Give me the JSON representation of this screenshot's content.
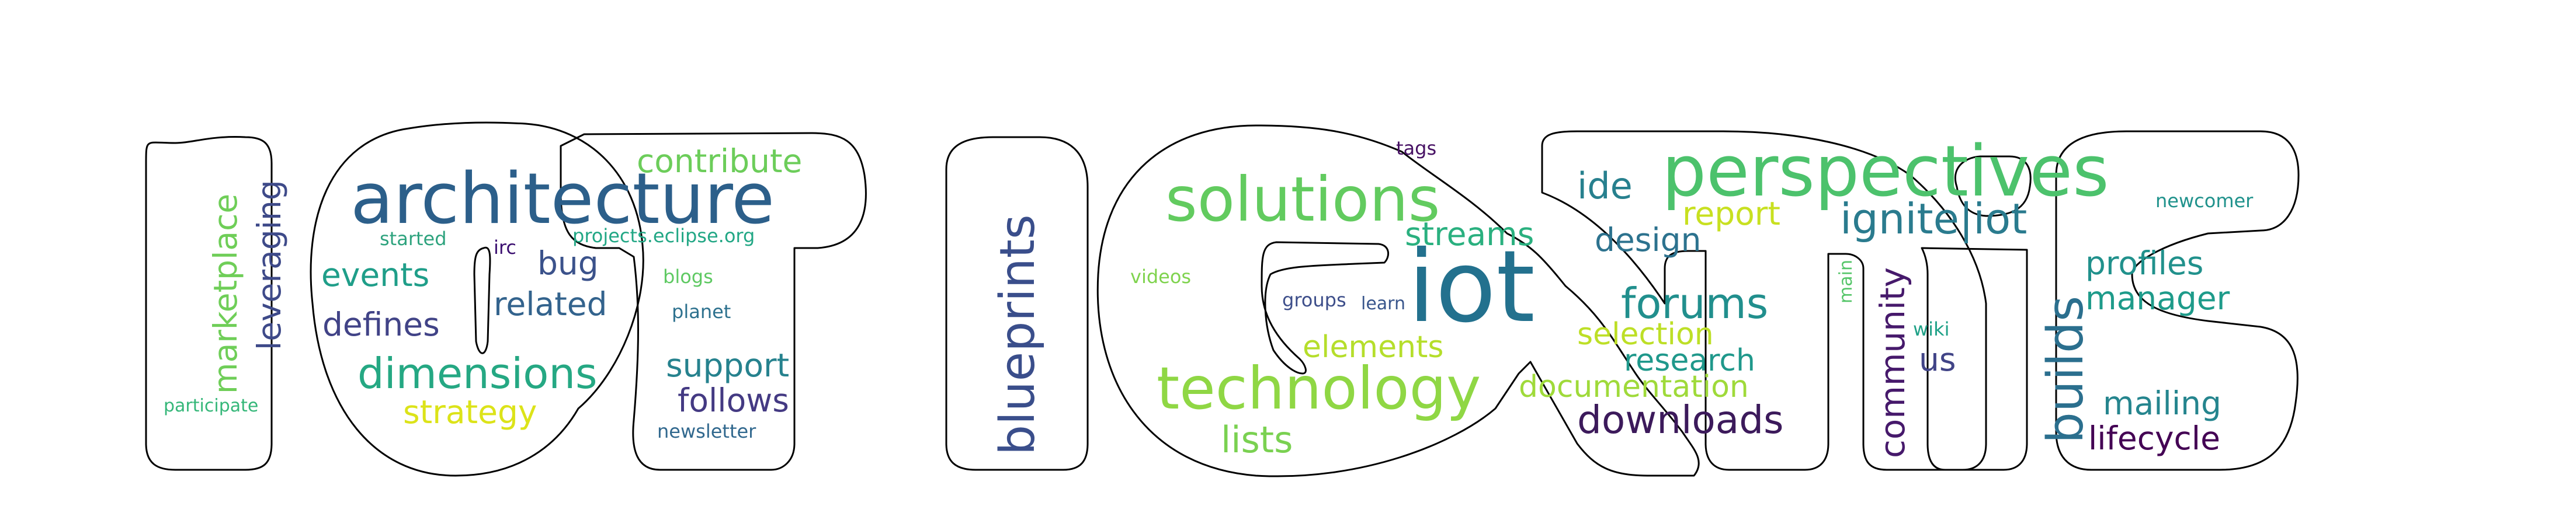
{
  "logo_text": "IoT Ignite",
  "colors": {
    "outline": "#000000",
    "background": "#ffffff"
  },
  "words": [
    {
      "text": "architecture",
      "color": "#2c5f8a"
    },
    {
      "text": "perspectives",
      "color": "#4cc26c"
    },
    {
      "text": "iot",
      "color": "#23718e"
    },
    {
      "text": "solutions",
      "color": "#62cb5f"
    },
    {
      "text": "technology",
      "color": "#8fd744"
    },
    {
      "text": "blueprints",
      "color": "#3a4e8b"
    },
    {
      "text": "dimensions",
      "color": "#25a883"
    },
    {
      "text": "builds",
      "color": "#2b6f8e"
    },
    {
      "text": "ignite|iot",
      "color": "#2a7b8e"
    },
    {
      "text": "forums",
      "color": "#218f8d"
    },
    {
      "text": "downloads",
      "color": "#3c1a5b"
    },
    {
      "text": "community",
      "color": "#46196b"
    },
    {
      "text": "marketplace",
      "color": "#6fce58"
    },
    {
      "text": "leveraging",
      "color": "#3e4a89"
    },
    {
      "text": "contribute",
      "color": "#6ccd5a"
    },
    {
      "text": "events",
      "color": "#1f9e89"
    },
    {
      "text": "defines",
      "color": "#414387"
    },
    {
      "text": "related",
      "color": "#33638d"
    },
    {
      "text": "bug",
      "color": "#3b528b"
    },
    {
      "text": "strategy",
      "color": "#dce319"
    },
    {
      "text": "support",
      "color": "#26828e"
    },
    {
      "text": "follows",
      "color": "#443a83"
    },
    {
      "text": "streams",
      "color": "#2ab07f"
    },
    {
      "text": "ide",
      "color": "#27808e"
    },
    {
      "text": "report",
      "color": "#c8e020"
    },
    {
      "text": "design",
      "color": "#2c728e"
    },
    {
      "text": "selection",
      "color": "#bddf26"
    },
    {
      "text": "research",
      "color": "#1f988b"
    },
    {
      "text": "documentation",
      "color": "#9fda3a"
    },
    {
      "text": "elements",
      "color": "#b5de2b"
    },
    {
      "text": "lists",
      "color": "#7ad151"
    },
    {
      "text": "profiles",
      "color": "#21918c"
    },
    {
      "text": "manager",
      "color": "#1e9b8a"
    },
    {
      "text": "mailing",
      "color": "#25858e"
    },
    {
      "text": "lifecycle",
      "color": "#440154"
    },
    {
      "text": "us",
      "color": "#414487"
    },
    {
      "text": "projects.eclipse.org",
      "color": "#22a785"
    },
    {
      "text": "started",
      "color": "#2ea37e"
    },
    {
      "text": "irc",
      "color": "#3b0f70"
    },
    {
      "text": "blogs",
      "color": "#5ec962"
    },
    {
      "text": "planet",
      "color": "#2d718e"
    },
    {
      "text": "newsletter",
      "color": "#31688e"
    },
    {
      "text": "participate",
      "color": "#35b779"
    },
    {
      "text": "tags",
      "color": "#471164"
    },
    {
      "text": "videos",
      "color": "#7fd34e"
    },
    {
      "text": "groups",
      "color": "#3d4e8a"
    },
    {
      "text": "learn",
      "color": "#39568c"
    },
    {
      "text": "main",
      "color": "#54c568"
    },
    {
      "text": "wiki",
      "color": "#1fa187"
    },
    {
      "text": "newcomer",
      "color": "#20928c"
    }
  ]
}
